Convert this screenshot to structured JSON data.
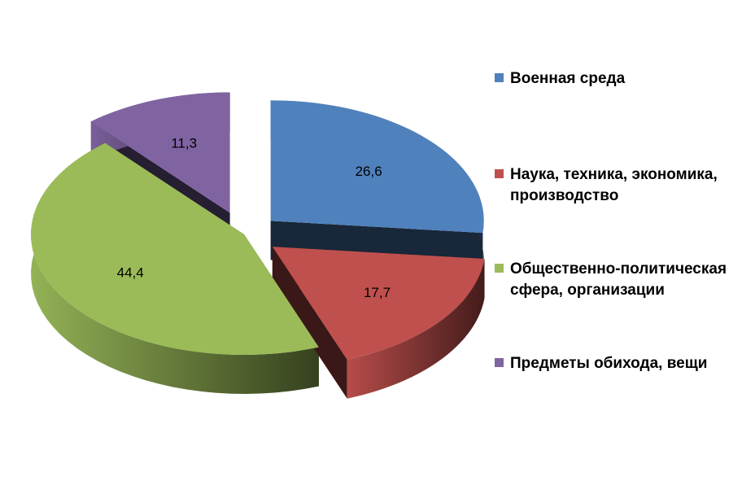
{
  "chart_data": {
    "type": "pie",
    "style": "3d-exploded",
    "categories": [
      "Военная среда",
      "Наука, техника, экономика, производство",
      "Общественно-политическая сфера, организации",
      "Предметы обихода, вещи"
    ],
    "values": [
      26.6,
      17.7,
      44.4,
      11.3
    ],
    "data_labels": [
      "26,6",
      "17,7",
      "44,4",
      "11,3"
    ],
    "colors": [
      "#4F81BD",
      "#C0504D",
      "#9BBB59",
      "#8064A2"
    ],
    "legend_position": "right",
    "title": ""
  },
  "legend": {
    "items": [
      {
        "label": "Военная среда",
        "color": "#4F81BD"
      },
      {
        "label": "Наука, техника, экономика,\nпроизводство",
        "color": "#C0504D"
      },
      {
        "label": "Общественно-политическая\nсфера, организации",
        "color": "#9BBB59"
      },
      {
        "label": "Предметы обихода, вещи",
        "color": "#8064A2"
      }
    ]
  }
}
